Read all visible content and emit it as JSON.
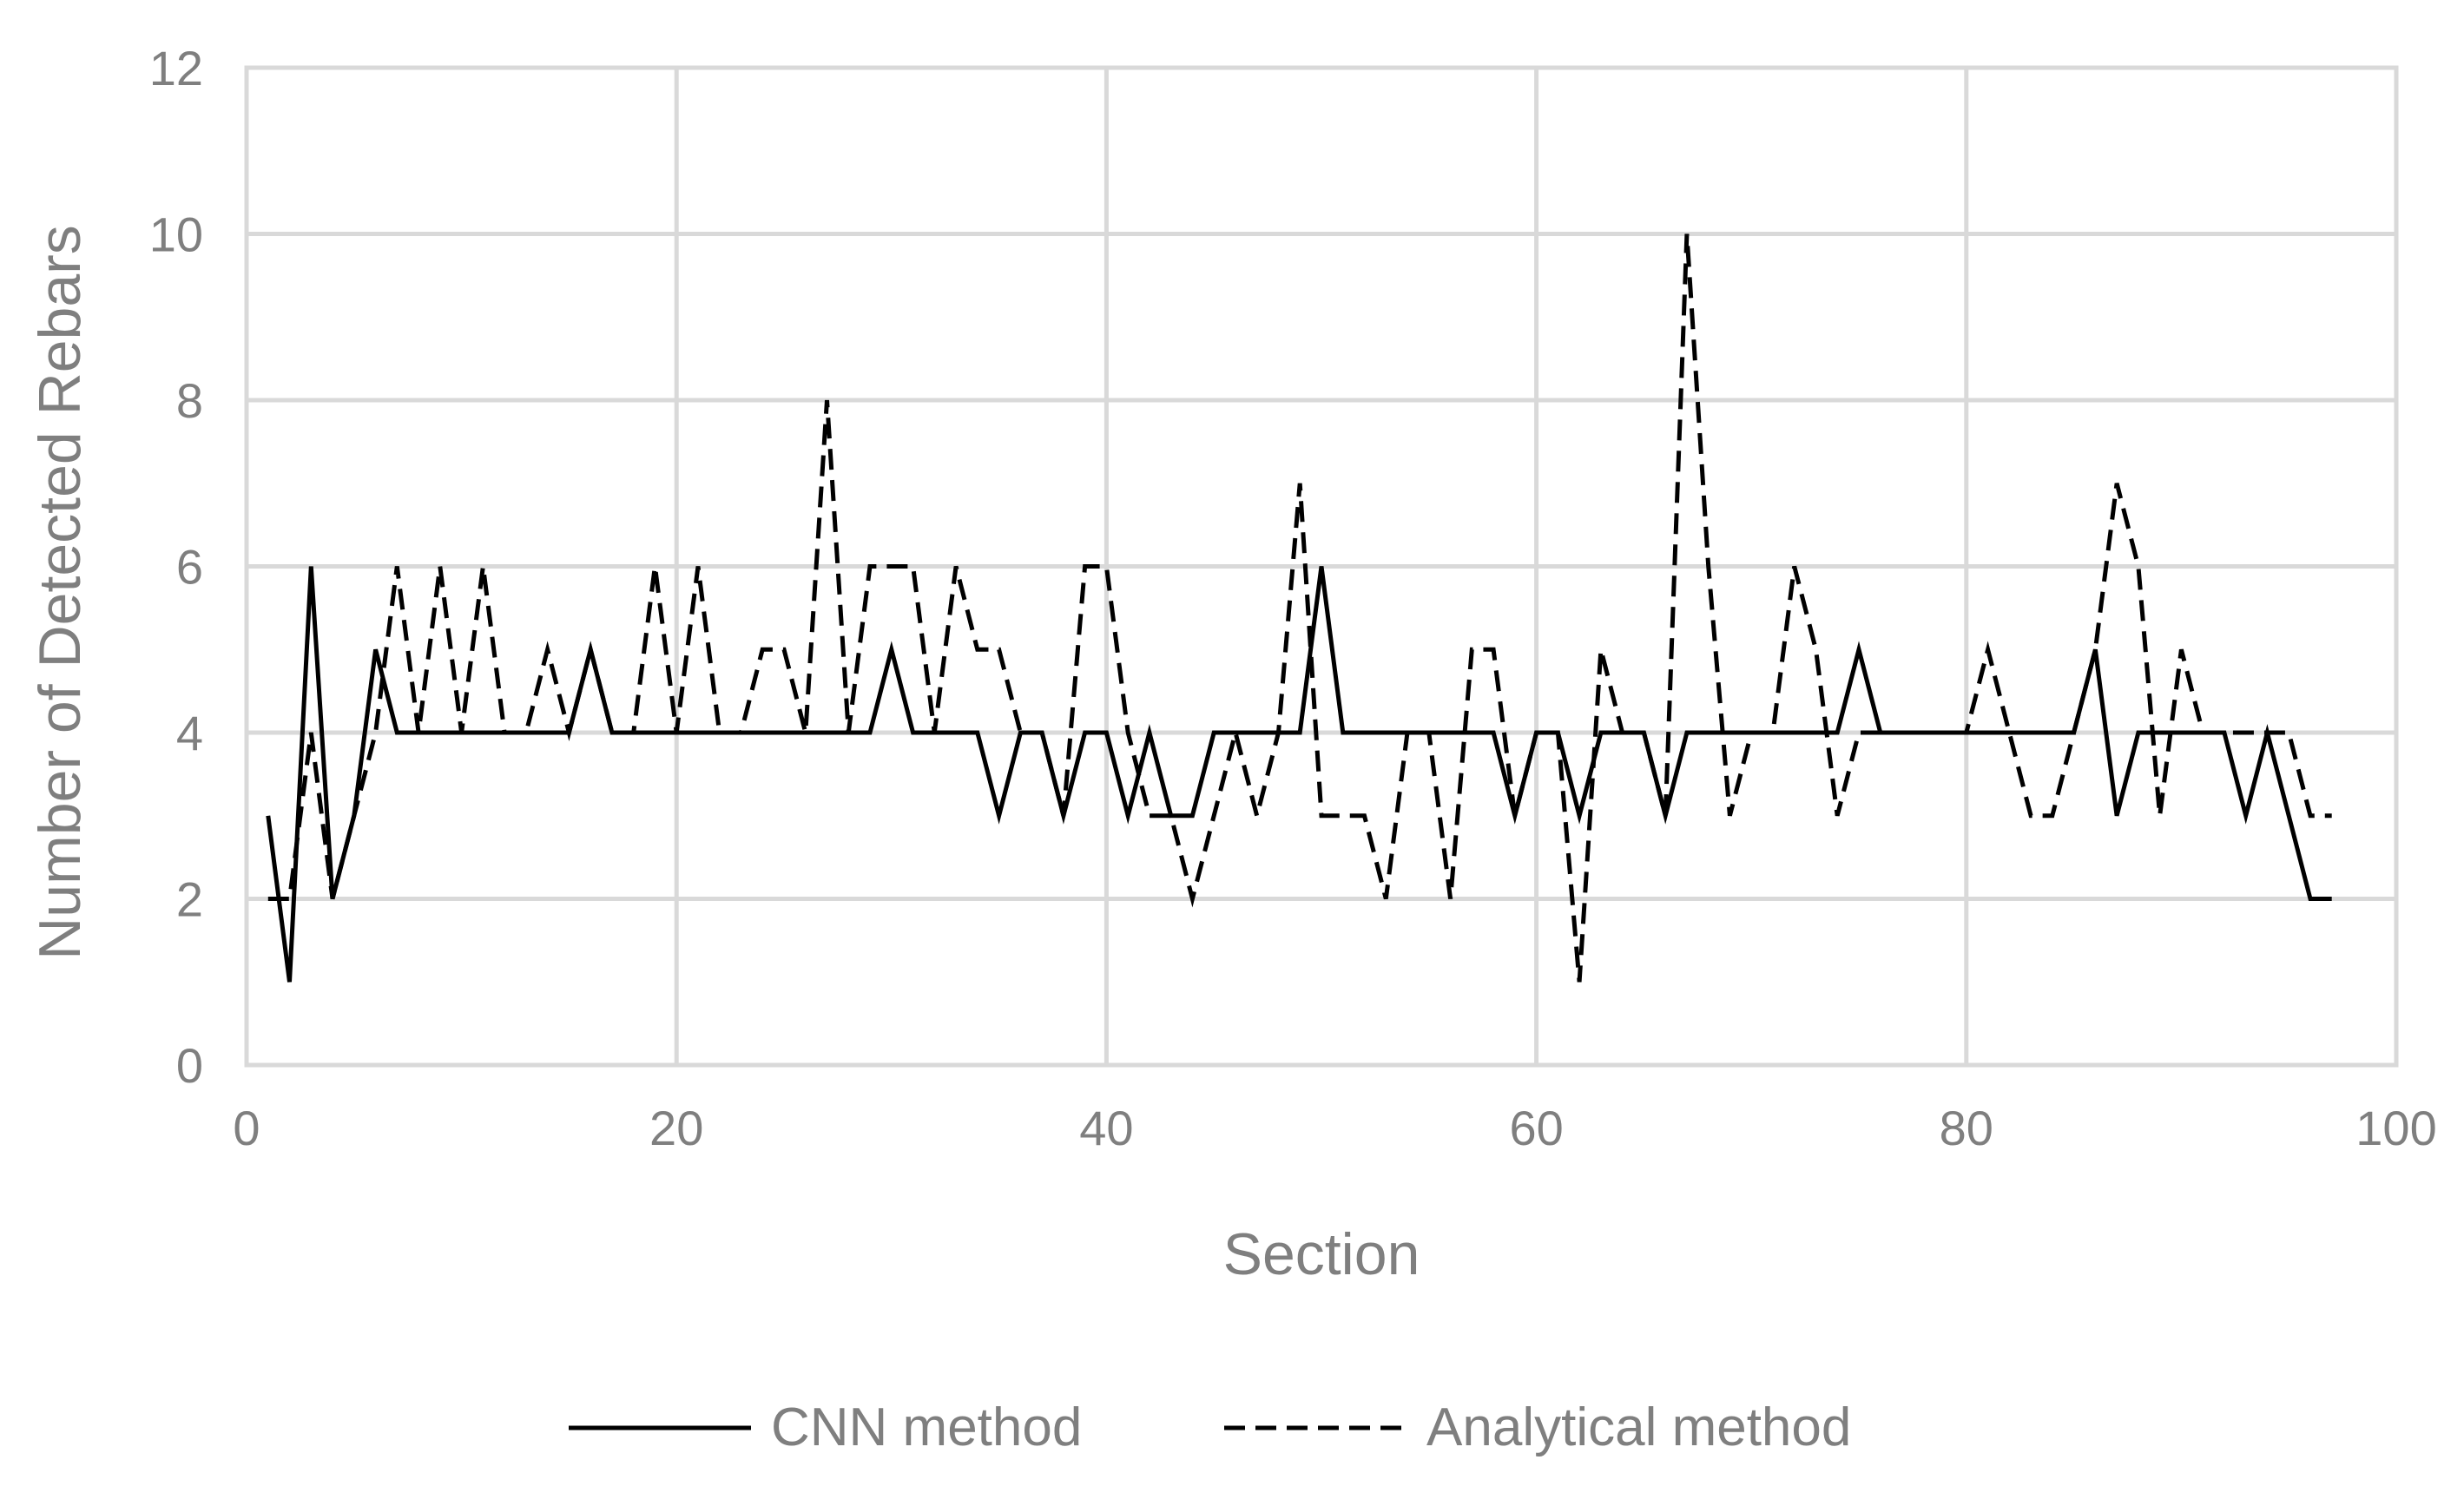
{
  "chart_data": {
    "type": "line",
    "title": "",
    "xlabel": "Section",
    "ylabel": "Number of Detected Rebars",
    "xlim": [
      0,
      100
    ],
    "ylim": [
      0,
      12
    ],
    "x_ticks": [
      "0",
      "20",
      "40",
      "60",
      "80",
      "100"
    ],
    "y_ticks": [
      "0",
      "2",
      "4",
      "6",
      "8",
      "10",
      "12"
    ],
    "grid": true,
    "legend_position": "bottom",
    "x": [
      1,
      2,
      3,
      4,
      5,
      6,
      7,
      8,
      9,
      10,
      11,
      12,
      13,
      14,
      15,
      16,
      17,
      18,
      19,
      20,
      21,
      22,
      23,
      24,
      25,
      26,
      27,
      28,
      29,
      30,
      31,
      32,
      33,
      34,
      35,
      36,
      37,
      38,
      39,
      40,
      41,
      42,
      43,
      44,
      45,
      46,
      47,
      48,
      49,
      50,
      51,
      52,
      53,
      54,
      55,
      56,
      57,
      58,
      59,
      60,
      61,
      62,
      63,
      64,
      65,
      66,
      67,
      68,
      69,
      70,
      71,
      72,
      73,
      74,
      75,
      76,
      77,
      78,
      79,
      80,
      81,
      82,
      83,
      84,
      85,
      86,
      87,
      88,
      89,
      90,
      91,
      92,
      93,
      94,
      95,
      96,
      97
    ],
    "series": [
      {
        "name": "CNN method",
        "style": "solid",
        "color": "#000000",
        "values": [
          3,
          1,
          6,
          2,
          3,
          5,
          4,
          4,
          4,
          4,
          4,
          4,
          4,
          4,
          4,
          5,
          4,
          4,
          4,
          4,
          4,
          4,
          4,
          4,
          4,
          4,
          4,
          4,
          4,
          5,
          4,
          4,
          4,
          4,
          3,
          4,
          4,
          3,
          4,
          4,
          3,
          4,
          3,
          3,
          4,
          4,
          4,
          4,
          4,
          6,
          4,
          4,
          4,
          4,
          4,
          4,
          4,
          4,
          3,
          4,
          4,
          3,
          4,
          4,
          4,
          3,
          4,
          4,
          4,
          4,
          4,
          4,
          4,
          4,
          5,
          4,
          4,
          4,
          4,
          4,
          4,
          4,
          4,
          4,
          4,
          5,
          3,
          4,
          4,
          4,
          4,
          4,
          3,
          4,
          3,
          2,
          2
        ]
      },
      {
        "name": "Analytical method",
        "style": "dashed",
        "color": "#000000",
        "values": [
          2,
          2,
          4,
          2,
          3,
          4,
          6,
          4,
          6,
          4,
          6,
          4,
          4,
          5,
          4,
          5,
          4,
          4,
          6,
          4,
          6,
          4,
          4,
          5,
          5,
          4,
          8,
          4,
          6,
          6,
          6,
          4,
          6,
          5,
          5,
          4,
          4,
          3,
          6,
          6,
          4,
          3,
          3,
          2,
          3,
          4,
          3,
          4,
          7,
          3,
          3,
          3,
          2,
          4,
          4,
          2,
          5,
          5,
          3,
          4,
          4,
          1,
          5,
          4,
          4,
          3,
          10,
          6,
          3,
          4,
          4,
          6,
          5,
          3,
          4,
          4,
          4,
          4,
          4,
          4,
          5,
          4,
          3,
          3,
          4,
          5,
          7,
          6,
          3,
          5,
          4,
          4,
          4,
          4,
          4,
          3,
          3
        ]
      }
    ]
  }
}
